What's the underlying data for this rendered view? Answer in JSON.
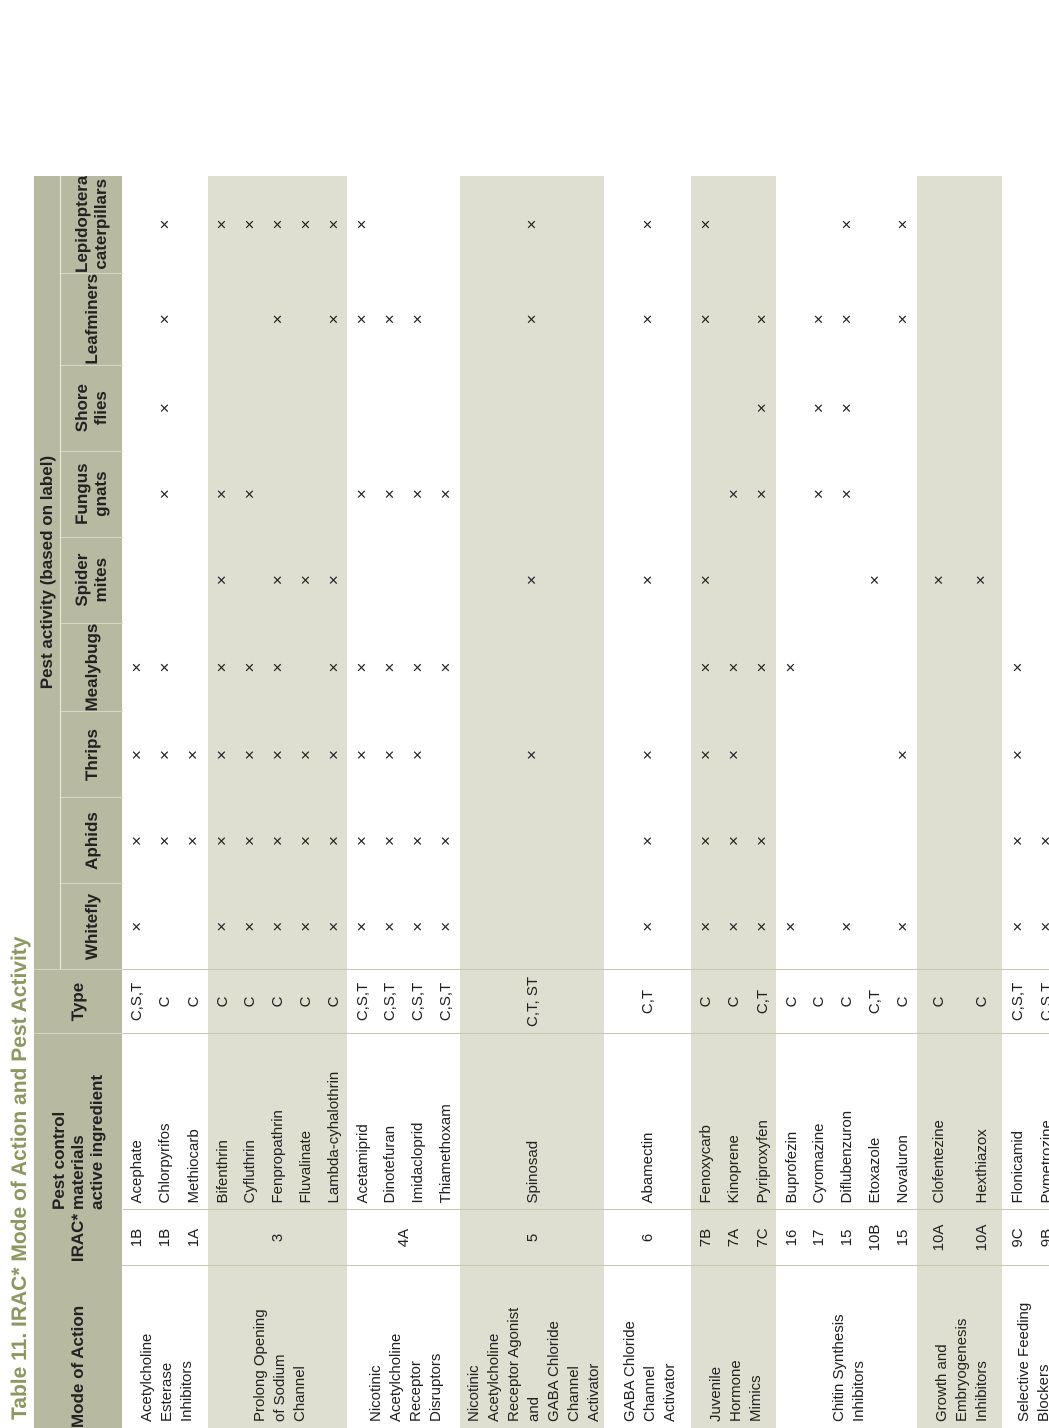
{
  "title": "Table 11. IRAC* Mode of Action and Pest Activity",
  "headers": {
    "mode": "Mode of Action",
    "irac": "IRAC*",
    "ingredient_line1": "Pest control materials",
    "ingredient_line2": "active ingredient",
    "type": "Type",
    "pest_activity": "Pest activity (based on label)",
    "pests": [
      {
        "line1": "Whitefly",
        "line2": ""
      },
      {
        "line1": "Aphids",
        "line2": ""
      },
      {
        "line1": "Thrips",
        "line2": ""
      },
      {
        "line1": "Mealybugs",
        "line2": ""
      },
      {
        "line1": "Spider",
        "line2": "mites"
      },
      {
        "line1": "Fungus",
        "line2": "gnats"
      },
      {
        "line1": "Shore",
        "line2": "flies"
      },
      {
        "line1": "Leafminers",
        "line2": ""
      },
      {
        "line1": "Lepidoptera",
        "line2": "caterpillars"
      }
    ]
  },
  "mark": "×",
  "groups": [
    {
      "mode": [
        "Acetylcholine",
        "Esterase",
        "Inhibitors"
      ],
      "irac_shared": "",
      "rows": [
        {
          "irac": "1B",
          "ingredient": "Acephate",
          "type": "C,S,T",
          "marks": [
            1,
            1,
            1,
            1,
            0,
            0,
            0,
            0,
            0
          ]
        },
        {
          "irac": "1B",
          "ingredient": "Chlorpyrifos",
          "type": "C",
          "marks": [
            0,
            1,
            1,
            1,
            0,
            1,
            1,
            1,
            1
          ]
        },
        {
          "irac": "1A",
          "ingredient": "Methiocarb",
          "type": "C",
          "marks": [
            0,
            1,
            1,
            0,
            0,
            0,
            0,
            0,
            0
          ]
        }
      ]
    },
    {
      "mode": [
        "Prolong Opening",
        "of Sodium",
        "Channel"
      ],
      "irac_shared": "3",
      "rows": [
        {
          "irac": "",
          "ingredient": "Bifenthrin",
          "type": "C",
          "marks": [
            1,
            1,
            1,
            1,
            1,
            1,
            0,
            0,
            1
          ]
        },
        {
          "irac": "",
          "ingredient": "Cyfluthrin",
          "type": "C",
          "marks": [
            1,
            1,
            1,
            1,
            0,
            1,
            0,
            0,
            1
          ]
        },
        {
          "irac": "",
          "ingredient": "Fenpropathrin",
          "type": "C",
          "marks": [
            1,
            1,
            1,
            1,
            1,
            0,
            0,
            1,
            1
          ]
        },
        {
          "irac": "",
          "ingredient": "Fluvalinate",
          "type": "C",
          "marks": [
            1,
            1,
            1,
            0,
            1,
            0,
            0,
            0,
            1
          ]
        },
        {
          "irac": "",
          "ingredient": "Lambda-cyhalothrin",
          "type": "C",
          "marks": [
            1,
            1,
            1,
            1,
            1,
            0,
            0,
            1,
            1
          ]
        }
      ]
    },
    {
      "mode": [
        "Nicotinic",
        "Acetylcholine",
        "Receptor",
        "Disruptors"
      ],
      "irac_shared": "4A",
      "rows": [
        {
          "irac": "",
          "ingredient": "Acetamiprid",
          "type": "C,S,T",
          "marks": [
            1,
            1,
            1,
            1,
            0,
            1,
            0,
            1,
            1
          ]
        },
        {
          "irac": "",
          "ingredient": "Dinotefuran",
          "type": "C,S,T",
          "marks": [
            1,
            1,
            1,
            1,
            0,
            1,
            0,
            1,
            0
          ]
        },
        {
          "irac": "",
          "ingredient": "Imidacloprid",
          "type": "C,S,T",
          "marks": [
            1,
            1,
            1,
            1,
            0,
            1,
            0,
            1,
            0
          ]
        },
        {
          "irac": "",
          "ingredient": "Thiamethoxam",
          "type": "C,S,T",
          "marks": [
            1,
            1,
            0,
            1,
            0,
            1,
            0,
            0,
            0
          ]
        }
      ]
    },
    {
      "mode": [
        "Nicotinic",
        "Acetylcholine",
        "Receptor Agonist",
        "and",
        "GABA Chloride",
        "Channel",
        "Activator"
      ],
      "irac_shared": "5",
      "rows": [
        {
          "irac": "",
          "ingredient": "Spinosad",
          "type": "C,T, ST",
          "marks": [
            0,
            0,
            1,
            0,
            1,
            0,
            0,
            1,
            1
          ]
        }
      ]
    },
    {
      "mode": [
        "GABA Chloride",
        "Channel",
        "Activator"
      ],
      "irac_shared": "6",
      "rows": [
        {
          "irac": "",
          "ingredient": "Abamectin",
          "type": "C,T",
          "marks": [
            1,
            1,
            1,
            0,
            1,
            0,
            0,
            1,
            1
          ]
        }
      ]
    },
    {
      "mode": [
        "Juvenile",
        "Hormone",
        "Mimics"
      ],
      "irac_shared": "",
      "rows": [
        {
          "irac": "7B",
          "ingredient": "Fenoxycarb",
          "type": "C",
          "marks": [
            1,
            1,
            1,
            1,
            1,
            0,
            0,
            1,
            1
          ]
        },
        {
          "irac": "7A",
          "ingredient": "Kinoprene",
          "type": "C",
          "marks": [
            1,
            1,
            1,
            1,
            0,
            1,
            0,
            0,
            0
          ]
        },
        {
          "irac": "7C",
          "ingredient": "Pyriproxyfen",
          "type": "C,T",
          "marks": [
            1,
            1,
            0,
            1,
            0,
            1,
            1,
            1,
            0
          ]
        }
      ]
    },
    {
      "mode": [
        "Chitin Synthesis",
        "Inhibitors"
      ],
      "irac_shared": "",
      "rows": [
        {
          "irac": "16",
          "ingredient": "Buprofezin",
          "type": "C",
          "marks": [
            1,
            0,
            0,
            1,
            0,
            0,
            0,
            0,
            0
          ]
        },
        {
          "irac": "17",
          "ingredient": "Cyromazine",
          "type": "C",
          "marks": [
            0,
            0,
            0,
            0,
            0,
            1,
            1,
            1,
            0
          ]
        },
        {
          "irac": "15",
          "ingredient": "Diflubenzuron",
          "type": "C",
          "marks": [
            1,
            0,
            0,
            0,
            0,
            1,
            1,
            1,
            1
          ]
        },
        {
          "irac": "10B",
          "ingredient": "Etoxazole",
          "type": "C,T",
          "marks": [
            0,
            0,
            0,
            0,
            1,
            0,
            0,
            0,
            0
          ]
        },
        {
          "irac": "15",
          "ingredient": "Novaluron",
          "type": "C",
          "marks": [
            1,
            0,
            1,
            0,
            0,
            0,
            0,
            1,
            1
          ]
        }
      ]
    },
    {
      "mode": [
        "Growth and",
        "Embryogenesis",
        "Inhibitors"
      ],
      "irac_shared": "",
      "rows": [
        {
          "irac": "10A",
          "ingredient": "Clofentezine",
          "type": "C",
          "marks": [
            0,
            0,
            0,
            0,
            1,
            0,
            0,
            0,
            0
          ]
        },
        {
          "irac": "10A",
          "ingredient": "Hexthiazox",
          "type": "C",
          "marks": [
            0,
            0,
            0,
            0,
            1,
            0,
            0,
            0,
            0
          ]
        }
      ]
    },
    {
      "mode": [
        "Selective Feeding",
        "Blockers"
      ],
      "irac_shared": "",
      "rows": [
        {
          "irac": "9C",
          "ingredient": "Flonicamid",
          "type": "C,S,T",
          "marks": [
            1,
            1,
            1,
            1,
            0,
            0,
            0,
            0,
            0
          ]
        },
        {
          "irac": "9B",
          "ingredient": "Pymetrozine",
          "type": "C,S,T",
          "marks": [
            1,
            1,
            0,
            0,
            0,
            0,
            0,
            0,
            0
          ]
        }
      ]
    }
  ]
}
